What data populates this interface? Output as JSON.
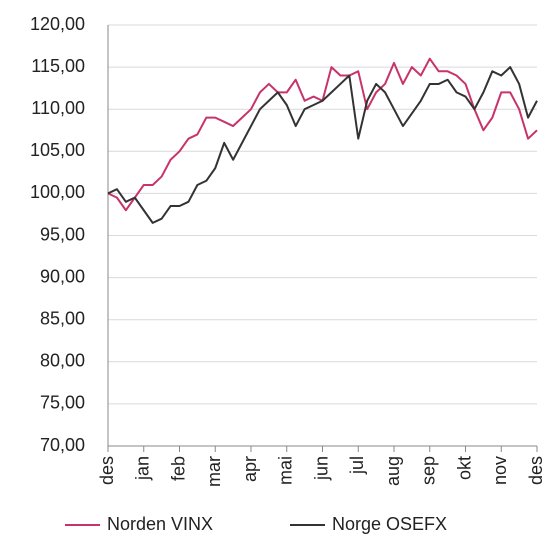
{
  "chart_data": {
    "type": "line",
    "x": [
      0,
      0.25,
      0.5,
      0.75,
      1,
      1.25,
      1.5,
      1.75,
      2,
      2.25,
      2.5,
      2.75,
      3,
      3.25,
      3.5,
      3.75,
      4,
      4.25,
      4.5,
      4.75,
      5,
      5.25,
      5.5,
      5.75,
      6,
      6.25,
      6.5,
      6.75,
      7,
      7.25,
      7.5,
      7.75,
      8,
      8.25,
      8.5,
      8.75,
      9,
      9.25,
      9.5,
      9.75,
      10,
      10.25,
      10.5,
      10.75,
      11,
      11.25,
      11.5,
      11.75,
      12
    ],
    "series": [
      {
        "name": "Norden VINX",
        "color": "#c8336b",
        "values": [
          100,
          99.5,
          98,
          99.5,
          101,
          101,
          102,
          104,
          105,
          106.5,
          107,
          109,
          109,
          108.5,
          108,
          109,
          110,
          112,
          113,
          112,
          112,
          113.5,
          111,
          111.5,
          111,
          115,
          114,
          114,
          114.5,
          110,
          112,
          113,
          115.5,
          113,
          115,
          114,
          116,
          114.5,
          114.5,
          114,
          113,
          110,
          107.5,
          109,
          112,
          112,
          110,
          106.5,
          107.5
        ]
      },
      {
        "name": "Norge OSEFX",
        "color": "#333333",
        "values": [
          100,
          100.5,
          99,
          99.5,
          98,
          96.5,
          97,
          98.5,
          98.5,
          99,
          101,
          101.5,
          103,
          106,
          104,
          106,
          108,
          110,
          111,
          112,
          110.5,
          108,
          110,
          110.5,
          111,
          112,
          113,
          114,
          106.5,
          111,
          113,
          112,
          110,
          108,
          109.5,
          111,
          113,
          113,
          113.5,
          112,
          111.5,
          110,
          112,
          114.5,
          114,
          115,
          113,
          109,
          111
        ]
      }
    ],
    "xlim": [
      0,
      12
    ],
    "xticks": [
      {
        "value": 0,
        "label": "des"
      },
      {
        "value": 1,
        "label": "jan"
      },
      {
        "value": 2,
        "label": "feb"
      },
      {
        "value": 3,
        "label": "mar"
      },
      {
        "value": 4,
        "label": "apr"
      },
      {
        "value": 5,
        "label": "mai"
      },
      {
        "value": 6,
        "label": "jun"
      },
      {
        "value": 7,
        "label": "jul"
      },
      {
        "value": 8,
        "label": "aug"
      },
      {
        "value": 9,
        "label": "sep"
      },
      {
        "value": 10,
        "label": "okt"
      },
      {
        "value": 11,
        "label": "nov"
      },
      {
        "value": 12,
        "label": "des"
      }
    ],
    "ylim": [
      70,
      120
    ],
    "yticks": [
      {
        "value": 70,
        "label": "70,00"
      },
      {
        "value": 75,
        "label": "75,00"
      },
      {
        "value": 80,
        "label": "80,00"
      },
      {
        "value": 85,
        "label": "85,00"
      },
      {
        "value": 90,
        "label": "90,00"
      },
      {
        "value": 95,
        "label": "95,00"
      },
      {
        "value": 100,
        "label": "100,00"
      },
      {
        "value": 105,
        "label": "105,00"
      },
      {
        "value": 110,
        "label": "110,00"
      },
      {
        "value": 115,
        "label": "115,00"
      },
      {
        "value": 120,
        "label": "120,00"
      }
    ],
    "grid": true,
    "legend": "bottom"
  }
}
